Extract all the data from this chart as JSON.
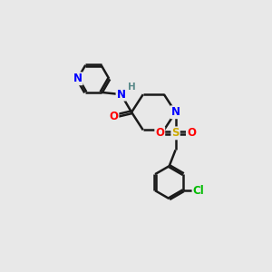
{
  "background_color": "#e8e8e8",
  "bond_color": "#1a1a1a",
  "bond_width": 1.8,
  "atom_colors": {
    "N": "#0000ff",
    "H": "#5a8a8a",
    "O": "#ff0000",
    "S": "#ccaa00",
    "Cl": "#00bb00",
    "C": "#1a1a1a"
  },
  "font_size": 8.5,
  "figsize": [
    3.0,
    3.0
  ],
  "dpi": 100
}
